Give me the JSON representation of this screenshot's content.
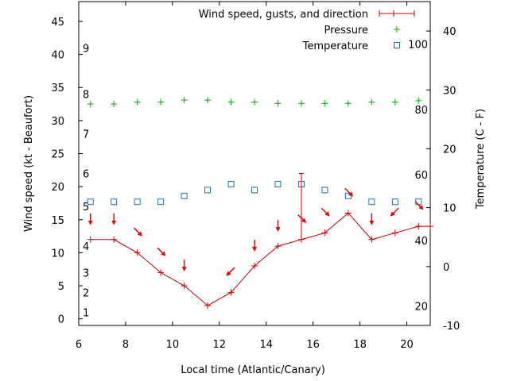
{
  "chart_data": {
    "type": "line",
    "xlabel": "Local time (Atlantic/Canary)",
    "ylabel": "Wind speed (kt - Beaufort)",
    "y2label": "Temperature (C - F)",
    "xlim": [
      6,
      21
    ],
    "ylim": [
      -1,
      48
    ],
    "y2lim": [
      -10,
      45
    ],
    "x_ticks": [
      6,
      8,
      10,
      12,
      14,
      16,
      18,
      20
    ],
    "y_ticks": [
      0,
      5,
      10,
      15,
      20,
      25,
      30,
      35,
      40,
      45
    ],
    "y2_ticks": [
      -10,
      0,
      10,
      20,
      30,
      40
    ],
    "beaufort_labels": [
      {
        "label": "1",
        "kt": 1
      },
      {
        "label": "2",
        "kt": 4
      },
      {
        "label": "3",
        "kt": 7
      },
      {
        "label": "4",
        "kt": 11
      },
      {
        "label": "5",
        "kt": 17
      },
      {
        "label": "6",
        "kt": 22
      },
      {
        "label": "7",
        "kt": 28
      },
      {
        "label": "8",
        "kt": 34
      },
      {
        "label": "9",
        "kt": 41
      }
    ],
    "fahrenheit_labels": [
      {
        "label": "20",
        "c": -6.7
      },
      {
        "label": "40",
        "c": 4.4
      },
      {
        "label": "60",
        "c": 15.6
      },
      {
        "label": "80",
        "c": 26.7
      },
      {
        "label": "100",
        "c": 37.8
      }
    ],
    "legend": {
      "position": "top-right",
      "entries": [
        "Wind speed, gusts, and direction",
        "Pressure",
        "Temperature"
      ]
    },
    "colors": {
      "wind": "#cc0000",
      "pressure": "#00aa00",
      "temperature": "#1f6fbf",
      "arrows": "#ee0000"
    },
    "series": [
      {
        "name": "Wind speed, gusts, and direction",
        "x": [
          6.5,
          7.5,
          8.5,
          9.5,
          10.5,
          11.5,
          12.5,
          13.5,
          14.5,
          15.5,
          16.5,
          17.5,
          18.5,
          19.5,
          20.5,
          21
        ],
        "values": [
          12,
          12,
          10,
          7,
          5,
          2,
          4,
          8,
          11,
          12,
          13,
          16,
          12,
          13,
          14,
          14
        ],
        "gusts": [
          {
            "x": 15.5,
            "value": 22
          }
        ]
      },
      {
        "name": "Pressure",
        "x": [
          6.5,
          7.5,
          8.5,
          9.5,
          10.5,
          11.5,
          12.5,
          13.5,
          14.5,
          15.5,
          16.5,
          17.5,
          18.5,
          19.5,
          20.5
        ],
        "values": [
          32.5,
          32.5,
          32.8,
          32.8,
          33.1,
          33.1,
          32.8,
          32.8,
          32.6,
          32.6,
          32.6,
          32.6,
          32.8,
          32.8,
          33.0
        ]
      },
      {
        "name": "Temperature",
        "x": [
          6.5,
          7.5,
          8.5,
          9.5,
          10.5,
          11.5,
          12.5,
          13.5,
          14.5,
          15.5,
          16.5,
          17.5,
          18.5,
          19.5,
          20.5
        ],
        "values": [
          11,
          11,
          11,
          11,
          12,
          13,
          14,
          13,
          14,
          14,
          13,
          12,
          11,
          11,
          11
        ]
      }
    ],
    "wind_direction_arrows": [
      {
        "x": 6.5,
        "speed": 12,
        "dir": "S"
      },
      {
        "x": 7.5,
        "speed": 12,
        "dir": "S"
      },
      {
        "x": 8.5,
        "speed": 10,
        "dir": "SE"
      },
      {
        "x": 9.5,
        "speed": 7,
        "dir": "SE"
      },
      {
        "x": 10.5,
        "speed": 5,
        "dir": "S"
      },
      {
        "x": 12.5,
        "speed": 4,
        "dir": "SW"
      },
      {
        "x": 13.5,
        "speed": 8,
        "dir": "S"
      },
      {
        "x": 14.5,
        "speed": 11,
        "dir": "S"
      },
      {
        "x": 15.5,
        "speed": 12,
        "dir": "SE"
      },
      {
        "x": 16.5,
        "speed": 13,
        "dir": "SE"
      },
      {
        "x": 17.5,
        "speed": 16,
        "dir": "SE"
      },
      {
        "x": 18.5,
        "speed": 12,
        "dir": "S"
      },
      {
        "x": 19.5,
        "speed": 13,
        "dir": "SW"
      },
      {
        "x": 20.5,
        "speed": 14,
        "dir": "SE"
      }
    ]
  }
}
